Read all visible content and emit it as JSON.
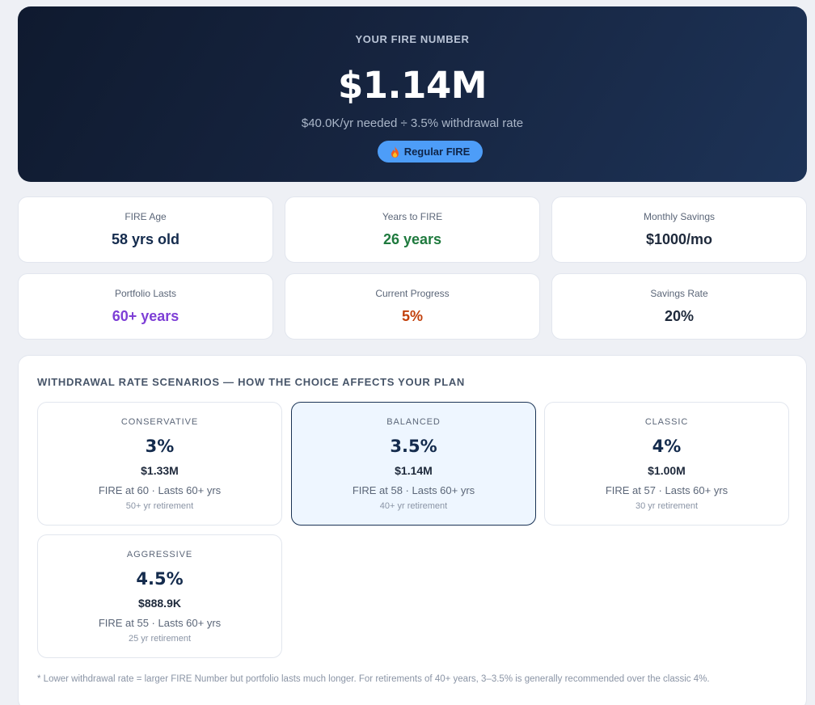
{
  "hero": {
    "label": "YOUR FIRE NUMBER",
    "value": "$1.14M",
    "subtitle": "$40.0K/yr needed ÷ 3.5% withdrawal rate",
    "badge_icon": "fire-icon",
    "badge_label": "Regular FIRE",
    "badge_color": "#4d9df8"
  },
  "stats": [
    {
      "label": "FIRE Age",
      "value": "58 yrs old",
      "color": "#142b4d"
    },
    {
      "label": "Years to FIRE",
      "value": "26 years",
      "color": "#1f7a3e"
    },
    {
      "label": "Monthly Savings",
      "value": "$1000/mo",
      "color": "#1e293b"
    },
    {
      "label": "Portfolio Lasts",
      "value": "60+ years",
      "color": "#7e3fd6"
    },
    {
      "label": "Current Progress",
      "value": "5%",
      "color": "#c2410c"
    },
    {
      "label": "Savings Rate",
      "value": "20%",
      "color": "#1e293b"
    }
  ],
  "scenarios": {
    "title": "WITHDRAWAL RATE SCENARIOS — HOW THE CHOICE AFFECTS YOUR PLAN",
    "items": [
      {
        "name": "CONSERVATIVE",
        "rate": "3%",
        "amount": "$1.33M",
        "detail": "FIRE at 60 · Lasts 60+ yrs",
        "note": "50+ yr retirement",
        "selected": false
      },
      {
        "name": "BALANCED",
        "rate": "3.5%",
        "amount": "$1.14M",
        "detail": "FIRE at 58 · Lasts 60+ yrs",
        "note": "40+ yr retirement",
        "selected": true
      },
      {
        "name": "CLASSIC",
        "rate": "4%",
        "amount": "$1.00M",
        "detail": "FIRE at 57 · Lasts 60+ yrs",
        "note": "30 yr retirement",
        "selected": false
      },
      {
        "name": "AGGRESSIVE",
        "rate": "4.5%",
        "amount": "$888.9K",
        "detail": "FIRE at 55 · Lasts 60+ yrs",
        "note": "25 yr retirement",
        "selected": false
      }
    ],
    "footnote": "* Lower withdrawal rate = larger FIRE Number but portfolio lasts much longer. For retirements of 40+ years, 3–3.5% is generally recommended over the classic 4%."
  }
}
